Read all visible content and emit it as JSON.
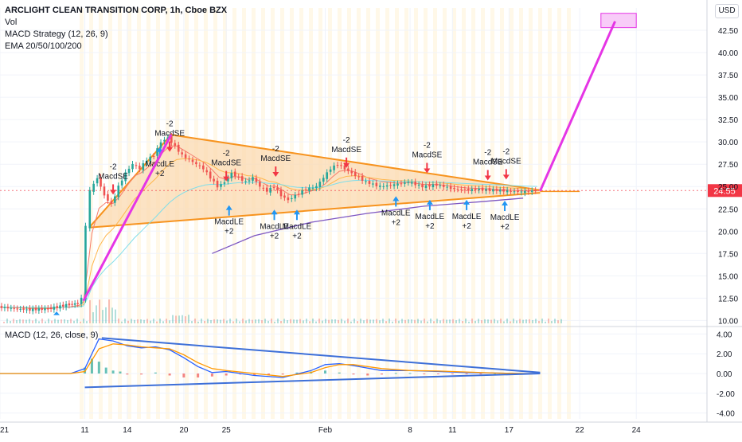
{
  "header": {
    "symbol_line": "ARCLIGHT CLEAN TRANSITION CORP, 1h, Cboe BZX",
    "indicators": [
      "Vol",
      "MACD Strategy (12, 26, 9)",
      "EMA 20/50/100/200"
    ],
    "currency_button": "USD"
  },
  "macd_panel": {
    "label": "MACD (12, 26, close, 9)"
  },
  "colors": {
    "up": "#26a69a",
    "down": "#ef5350",
    "projection": "#e535e5",
    "triangle": "#f7931e",
    "triangle_fill": "#fbd9b0",
    "trendline_macd": "#3d6fd8",
    "ema20": "#f57c6b",
    "ema50": "#ffb74d",
    "ema100": "#80deea",
    "ema200": "#7e57c2",
    "macd_line": "#2962ff",
    "signal_line": "#ff9800",
    "price_tag": "#f23645"
  },
  "chart_data": [
    {
      "type": "line",
      "panel": "price",
      "title": "ARCLIGHT CLEAN TRANSITION CORP, 1h, Cboe BZX",
      "y_axis_ticks": [
        "10.00",
        "12.50",
        "15.00",
        "17.50",
        "20.00",
        "22.50",
        "25.00",
        "27.50",
        "30.00",
        "32.50",
        "35.00",
        "37.50",
        "40.00",
        "42.50"
      ],
      "ylim": [
        9.5,
        45
      ],
      "x_axis_ticks": [
        {
          "label": "2021",
          "x": 0
        },
        {
          "label": "11",
          "x": 6
        },
        {
          "label": "14",
          "x": 9
        },
        {
          "label": "20",
          "x": 13
        },
        {
          "label": "25",
          "x": 16
        },
        {
          "label": "Feb",
          "x": 23
        },
        {
          "label": "8",
          "x": 29
        },
        {
          "label": "11",
          "x": 32
        },
        {
          "label": "17",
          "x": 36
        },
        {
          "label": "22",
          "x": 41
        },
        {
          "label": "24",
          "x": 45
        }
      ],
      "xlim": [
        0,
        50
      ],
      "last_price": "24.55",
      "price_series": [
        [
          0,
          11.5
        ],
        [
          2,
          11.2
        ],
        [
          3.5,
          11.3
        ],
        [
          5,
          11.8
        ],
        [
          5.6,
          11.9
        ],
        [
          5.9,
          12.5
        ],
        [
          6.2,
          20.5
        ],
        [
          6.5,
          24.5
        ],
        [
          7,
          26
        ],
        [
          7.5,
          24
        ],
        [
          8,
          23
        ],
        [
          8.5,
          25
        ],
        [
          9,
          26.5
        ],
        [
          9.5,
          27.5
        ],
        [
          10,
          27
        ],
        [
          10.5,
          28
        ],
        [
          11,
          28.5
        ],
        [
          11.5,
          30
        ],
        [
          12,
          30.5
        ],
        [
          12.5,
          29.5
        ],
        [
          13,
          28.5
        ],
        [
          13.5,
          28
        ],
        [
          14,
          27.5
        ],
        [
          14.5,
          27
        ],
        [
          15,
          26
        ],
        [
          15.5,
          25
        ],
        [
          16,
          25.5
        ],
        [
          16.5,
          26.5
        ],
        [
          17,
          26
        ],
        [
          17.5,
          25.5
        ],
        [
          18,
          26
        ],
        [
          18.5,
          25
        ],
        [
          19,
          24.5
        ],
        [
          19.5,
          25
        ],
        [
          20,
          24
        ],
        [
          20.5,
          23.5
        ],
        [
          21,
          24
        ],
        [
          21.5,
          24.5
        ],
        [
          22,
          24.8
        ],
        [
          22.5,
          25
        ],
        [
          23,
          26
        ],
        [
          23.5,
          27
        ],
        [
          24,
          27.5
        ],
        [
          24.5,
          27
        ],
        [
          25,
          26.5
        ],
        [
          25.5,
          26
        ],
        [
          26,
          25.5
        ],
        [
          27,
          25
        ],
        [
          28,
          25.2
        ],
        [
          29,
          25.5
        ],
        [
          30,
          25
        ],
        [
          31,
          25.2
        ],
        [
          32,
          24.8
        ],
        [
          33,
          24.6
        ],
        [
          34,
          24.7
        ],
        [
          35,
          24.6
        ],
        [
          36,
          24.5
        ],
        [
          37,
          24.4
        ],
        [
          38,
          24.55
        ]
      ],
      "triangle_upper": [
        [
          6.3,
          20.4
        ],
        [
          12.1,
          30.8
        ],
        [
          38.2,
          24.6
        ]
      ],
      "triangle_lower": [
        [
          6.3,
          20.4
        ],
        [
          38.2,
          24.3
        ]
      ],
      "projection_lines": [
        [
          [
            5.9,
            12.2
          ],
          [
            12.1,
            30.8
          ]
        ],
        [
          [
            38.2,
            24.5
          ],
          [
            43.5,
            43.5
          ]
        ]
      ],
      "target_box": {
        "x": [
          42.5,
          45
        ],
        "y": [
          42.8,
          44.4
        ]
      },
      "ema200_series": [
        [
          15,
          17.5
        ],
        [
          18,
          19.5
        ],
        [
          22,
          21
        ],
        [
          26,
          22
        ],
        [
          30,
          22.8
        ],
        [
          34,
          23.3
        ],
        [
          37,
          23.7
        ]
      ],
      "signals": [
        {
          "type": "short",
          "x": 8.0,
          "y": 24.0,
          "label": "MacdSE",
          "qty": "-2"
        },
        {
          "type": "short",
          "x": 12.0,
          "y": 28.8,
          "label": "MacdSE",
          "qty": "-2"
        },
        {
          "type": "long",
          "x": 11.3,
          "y": 29.5,
          "label": "MacdLE",
          "qty": "+2"
        },
        {
          "type": "short",
          "x": 16.0,
          "y": 25.5,
          "label": "MacdSE",
          "qty": "-2"
        },
        {
          "type": "long",
          "x": 16.2,
          "y": 23.0,
          "label": "MacdLE",
          "qty": "+2"
        },
        {
          "type": "short",
          "x": 19.5,
          "y": 26.0,
          "label": "MacdSE",
          "qty": "-2"
        },
        {
          "type": "long",
          "x": 19.4,
          "y": 22.5,
          "label": "MacdLE",
          "qty": "+2"
        },
        {
          "type": "long",
          "x": 21.0,
          "y": 22.5,
          "label": "MacdLE",
          "qty": "+2"
        },
        {
          "type": "short",
          "x": 24.5,
          "y": 27.0,
          "label": "MacdSE",
          "qty": "-2"
        },
        {
          "type": "long",
          "x": 28.0,
          "y": 24.0,
          "label": "MacdLE",
          "qty": "+2"
        },
        {
          "type": "short",
          "x": 30.2,
          "y": 26.4,
          "label": "MacdSE",
          "qty": "-2"
        },
        {
          "type": "long",
          "x": 30.4,
          "y": 23.6,
          "label": "MacdLE",
          "qty": "+2"
        },
        {
          "type": "short",
          "x": 34.5,
          "y": 25.6,
          "label": "MacdSE",
          "qty": "-2"
        },
        {
          "type": "long",
          "x": 33.0,
          "y": 23.6,
          "label": "MacdLE",
          "qty": "+2"
        },
        {
          "type": "short",
          "x": 35.8,
          "y": 25.7,
          "label": "MacdSE",
          "qty": "-2"
        },
        {
          "type": "long",
          "x": 35.7,
          "y": 23.5,
          "label": "MacdLE",
          "qty": "+2"
        }
      ]
    },
    {
      "type": "line",
      "panel": "macd",
      "title": "MACD (12, 26, close, 9)",
      "y_axis_ticks": [
        "-4.00",
        "-2.00",
        "0.00",
        "2.00",
        "4.00"
      ],
      "ylim": [
        -4.6,
        4.6
      ],
      "xlim": [
        0,
        50
      ],
      "series": [
        {
          "name": "MACD",
          "values": [
            [
              0,
              0
            ],
            [
              5,
              0
            ],
            [
              6,
              0.5
            ],
            [
              7,
              3.5
            ],
            [
              8,
              3.3
            ],
            [
              9,
              2.8
            ],
            [
              10,
              2.6
            ],
            [
              11,
              2.7
            ],
            [
              12,
              2.4
            ],
            [
              13,
              1.6
            ],
            [
              14,
              0.7
            ],
            [
              15,
              0.1
            ],
            [
              16,
              0.2
            ],
            [
              18,
              -0.2
            ],
            [
              20,
              -0.4
            ],
            [
              22,
              0.3
            ],
            [
              23,
              0.9
            ],
            [
              24,
              1.0
            ],
            [
              25,
              0.8
            ],
            [
              27,
              0.3
            ],
            [
              29,
              0.3
            ],
            [
              31,
              0.2
            ],
            [
              33,
              0.1
            ],
            [
              35,
              0.05
            ],
            [
              37,
              0.0
            ],
            [
              38,
              0.0
            ]
          ]
        },
        {
          "name": "Signal",
          "values": [
            [
              0,
              0
            ],
            [
              5,
              0
            ],
            [
              6,
              0.2
            ],
            [
              7,
              2.5
            ],
            [
              8,
              3.0
            ],
            [
              9,
              2.9
            ],
            [
              10,
              2.7
            ],
            [
              11,
              2.6
            ],
            [
              12,
              2.5
            ],
            [
              13,
              1.9
            ],
            [
              14,
              1.1
            ],
            [
              15,
              0.5
            ],
            [
              16,
              0.3
            ],
            [
              18,
              0.0
            ],
            [
              20,
              -0.3
            ],
            [
              22,
              0.1
            ],
            [
              23,
              0.6
            ],
            [
              24,
              0.9
            ],
            [
              25,
              0.9
            ],
            [
              27,
              0.5
            ],
            [
              29,
              0.3
            ],
            [
              31,
              0.25
            ],
            [
              33,
              0.15
            ],
            [
              35,
              0.05
            ],
            [
              37,
              0.0
            ],
            [
              38,
              0.0
            ]
          ]
        }
      ],
      "trend_upper": [
        [
          7.2,
          3.6
        ],
        [
          38.2,
          0.1
        ]
      ],
      "trend_lower": [
        [
          6,
          -1.4
        ],
        [
          38.2,
          0.0
        ]
      ],
      "histogram": [
        [
          6,
          0.6
        ],
        [
          6.5,
          1.5
        ],
        [
          7,
          1.2
        ],
        [
          7.5,
          0.6
        ],
        [
          8,
          0.3
        ],
        [
          8.5,
          0.2
        ],
        [
          9,
          -0.1
        ],
        [
          10,
          -0.1
        ],
        [
          11,
          0.1
        ],
        [
          12,
          -0.2
        ],
        [
          13,
          -0.4
        ],
        [
          14,
          -0.4
        ],
        [
          15,
          -0.3
        ],
        [
          16,
          -0.2
        ],
        [
          17,
          -0.1
        ],
        [
          18,
          -0.2
        ],
        [
          19,
          -0.2
        ],
        [
          20,
          -0.1
        ],
        [
          21,
          0.1
        ],
        [
          22,
          0.2
        ],
        [
          23,
          0.3
        ],
        [
          24,
          0.1
        ],
        [
          25,
          -0.1
        ],
        [
          26,
          -0.2
        ],
        [
          27,
          -0.1
        ],
        [
          28,
          0.05
        ],
        [
          29,
          0.05
        ],
        [
          30,
          -0.05
        ],
        [
          31,
          -0.05
        ],
        [
          32,
          -0.05
        ],
        [
          33,
          -0.03
        ],
        [
          34,
          -0.03
        ],
        [
          35,
          0.03
        ],
        [
          36,
          0.03
        ],
        [
          37,
          -0.02
        ],
        [
          38,
          0.02
        ]
      ]
    }
  ]
}
